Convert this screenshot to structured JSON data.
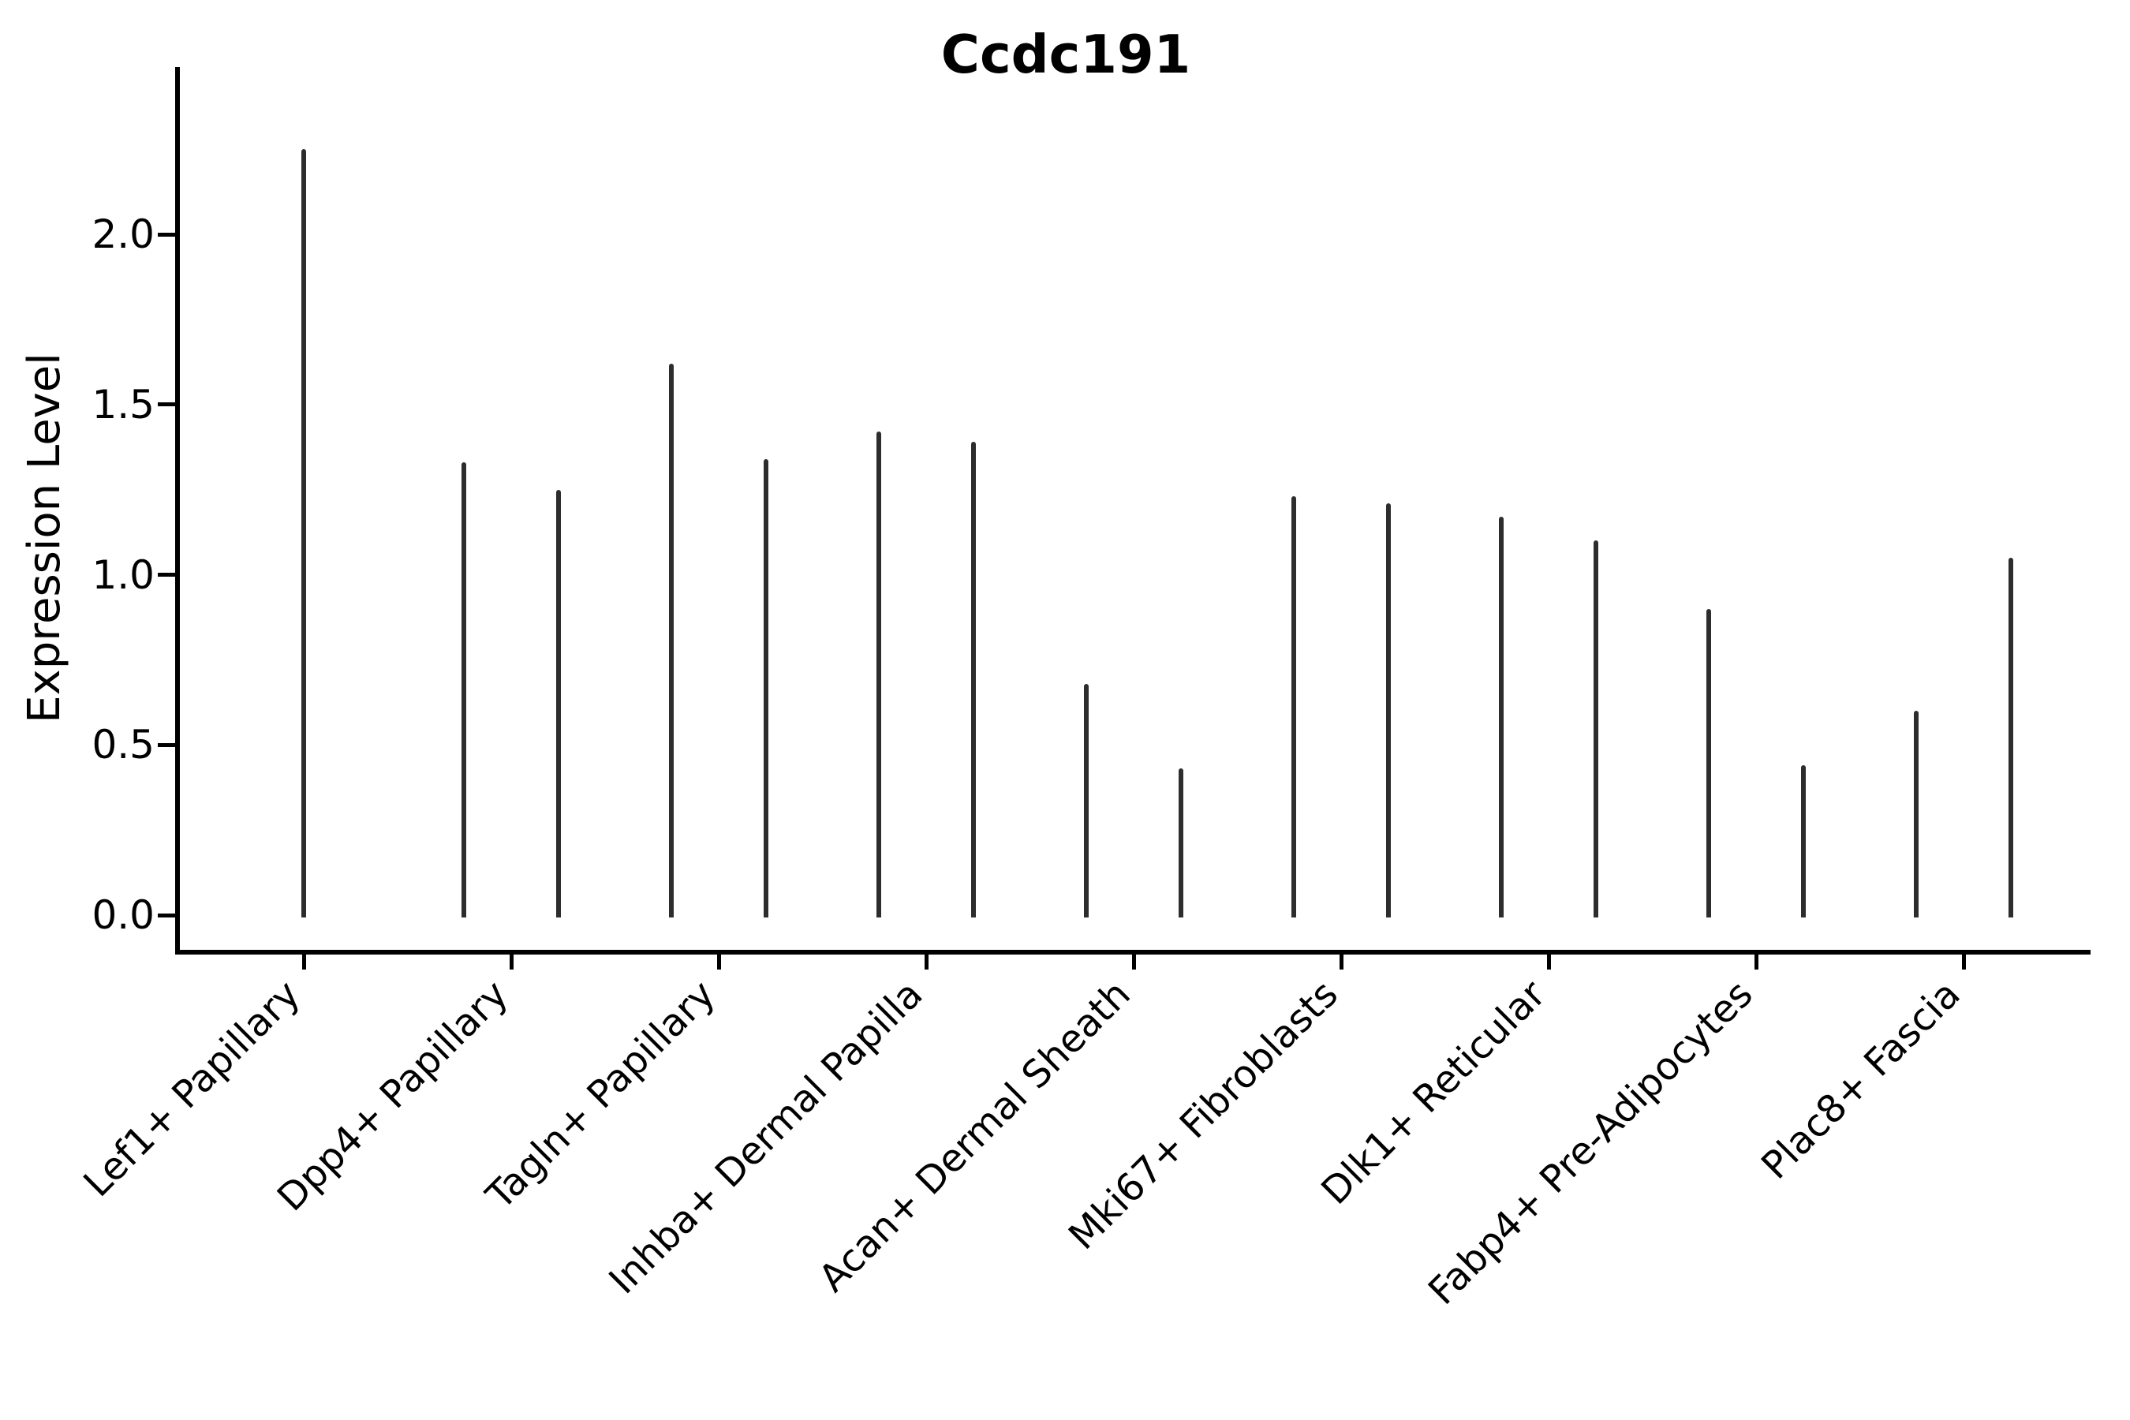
{
  "title": "Ccdc191",
  "ylabel": "Expression Level",
  "chart_data": {
    "type": "violin",
    "title": "Ccdc191",
    "xlabel": "",
    "ylabel": "Expression Level",
    "ylim": [
      -0.11,
      2.49
    ],
    "yticks": [
      0.0,
      0.5,
      1.0,
      1.5,
      2.0
    ],
    "ytick_labels": [
      "0.0",
      "0.5",
      "1.0",
      "1.5",
      "2.0"
    ],
    "grid": false,
    "legend": "none",
    "line_color": "#2d2d2d",
    "axis_color": "#000000",
    "text_color": "#000000",
    "description": "Violin plot of gene expression; violins are collapsed at 0 with thin spikes up to the maximum expression value. Most categories contain two violins side by side; the first category has a single centered violin.",
    "baseline_value": 0.0,
    "categories": [
      {
        "label": "Lef1+ Papillary",
        "violins": [
          {
            "position": "center",
            "max": 2.25
          }
        ]
      },
      {
        "label": "Dpp4+ Papillary",
        "violins": [
          {
            "position": "left",
            "max": 1.33
          },
          {
            "position": "right",
            "max": 1.25
          }
        ]
      },
      {
        "label": "Tagln+ Papillary",
        "violins": [
          {
            "position": "left",
            "max": 1.62
          },
          {
            "position": "right",
            "max": 1.34
          }
        ]
      },
      {
        "label": "Inhba+ Dermal Papilla",
        "violins": [
          {
            "position": "left",
            "max": 1.42
          },
          {
            "position": "right",
            "max": 1.39
          }
        ]
      },
      {
        "label": "Acan+ Dermal Sheath",
        "violins": [
          {
            "position": "left",
            "max": 0.68
          },
          {
            "position": "right",
            "max": 0.43
          }
        ]
      },
      {
        "label": "Mki67+ Fibroblasts",
        "violins": [
          {
            "position": "left",
            "max": 1.23
          },
          {
            "position": "right",
            "max": 1.21
          }
        ]
      },
      {
        "label": "Dlk1+ Reticular",
        "violins": [
          {
            "position": "left",
            "max": 1.17
          },
          {
            "position": "right",
            "max": 1.1
          }
        ]
      },
      {
        "label": "Fabp4+ Pre-Adipocytes",
        "violins": [
          {
            "position": "left",
            "max": 0.9
          },
          {
            "position": "right",
            "max": 0.44
          }
        ]
      },
      {
        "label": "Plac8+ Fascia",
        "violins": [
          {
            "position": "left",
            "max": 0.6
          },
          {
            "position": "right",
            "max": 1.05
          }
        ]
      }
    ]
  }
}
